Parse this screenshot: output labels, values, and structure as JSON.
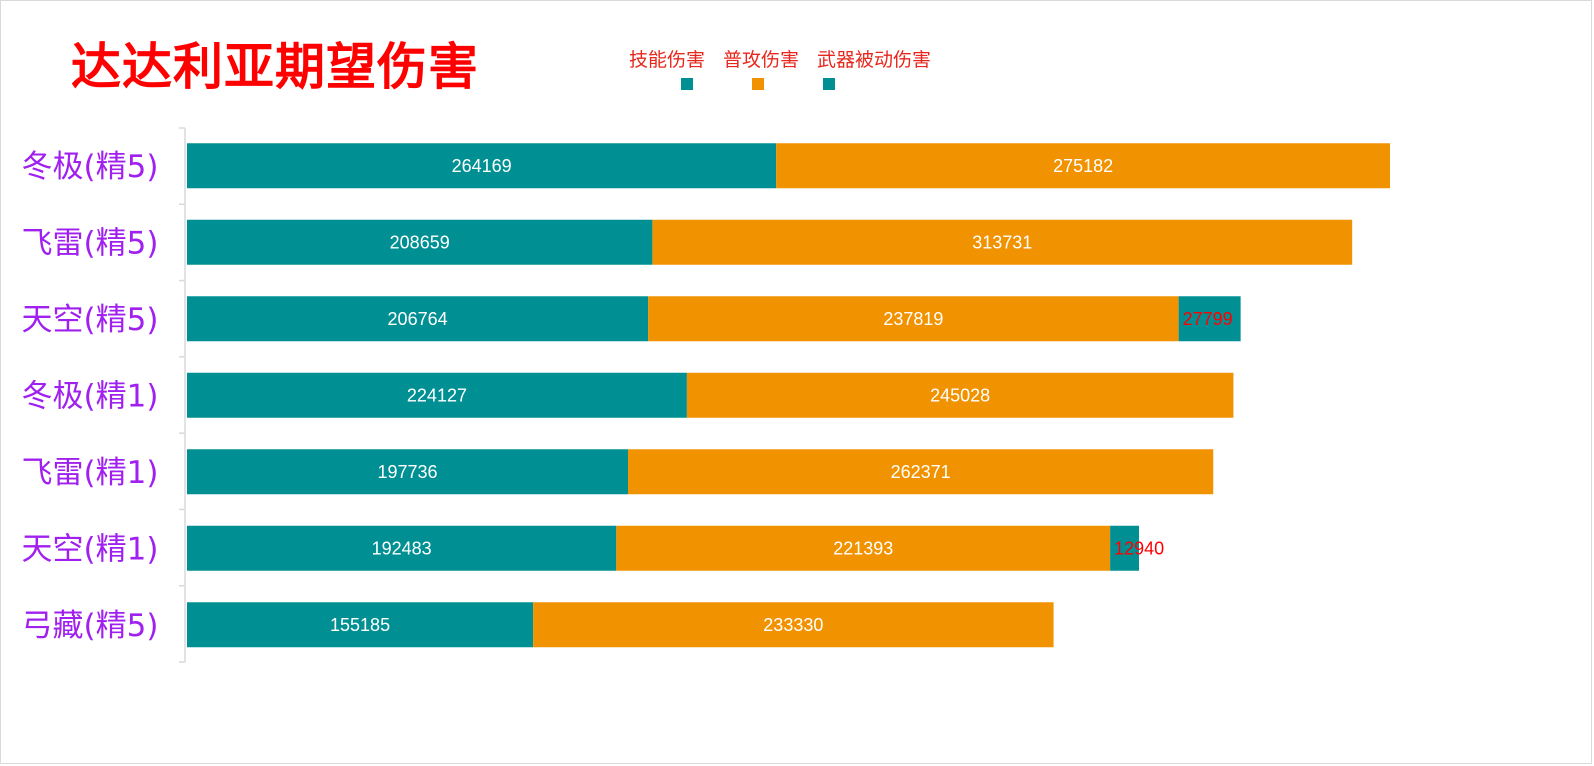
{
  "colors": {
    "skill": "#009093",
    "normal": "#f19200",
    "weapon": "#009093",
    "title": "#ff0000",
    "category_label": "#a020f0",
    "legend_text": "#e8271c",
    "bar_label_light": "#ffffff",
    "bar_label_small": "#ff0000"
  },
  "chart_data": {
    "type": "bar",
    "orientation": "horizontal",
    "stacked": true,
    "title": "达达利亚期望伤害",
    "categories": [
      "冬极(精5)",
      "飞雷(精5)",
      "天空(精5)",
      "冬极(精1)",
      "飞雷(精1)",
      "天空(精1)",
      "弓藏(精5)"
    ],
    "series": [
      {
        "name": "技能伤害",
        "values": [
          264169,
          208659,
          206764,
          224127,
          197736,
          192483,
          155185
        ]
      },
      {
        "name": "普攻伤害",
        "values": [
          275182,
          313731,
          237819,
          245028,
          262371,
          221393,
          233330
        ]
      },
      {
        "name": "武器被动伤害",
        "values": [
          0,
          0,
          27799,
          0,
          0,
          12940,
          0
        ]
      }
    ],
    "xlim": [
      0,
      610000
    ],
    "grid": false,
    "legend_position": "top"
  }
}
